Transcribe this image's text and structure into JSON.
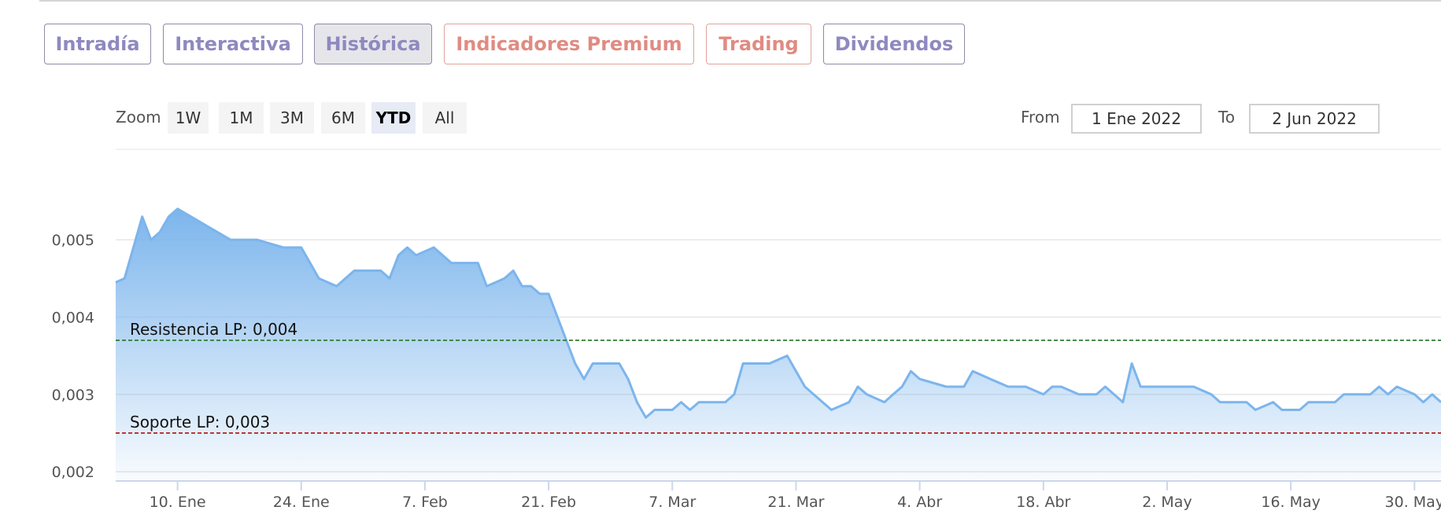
{
  "tabs": [
    {
      "label": "Intradía",
      "active": false,
      "style": "normal"
    },
    {
      "label": "Interactiva",
      "active": false,
      "style": "normal"
    },
    {
      "label": "Histórica",
      "active": true,
      "style": "normal"
    },
    {
      "label": "Indicadores Premium",
      "active": false,
      "style": "premium"
    },
    {
      "label": "Trading",
      "active": false,
      "style": "premium"
    },
    {
      "label": "Dividendos",
      "active": false,
      "style": "normal"
    }
  ],
  "zoom": {
    "label": "Zoom",
    "buttons": [
      "1W",
      "1M",
      "3M",
      "6M",
      "YTD",
      "All"
    ],
    "selected": "YTD"
  },
  "range": {
    "from_label": "From",
    "from_value": "1 Ene 2022",
    "to_label": "To",
    "to_value": "2 Jun 2022"
  },
  "colors": {
    "line": "#7cb5ec",
    "resistance": "#2e7d32",
    "support": "#b71c1c",
    "tab_text": "#8e89c0",
    "premium_text": "#e08b82"
  },
  "chart_data": {
    "type": "area",
    "title": "",
    "xlabel": "",
    "ylabel": "",
    "ylim": [
      0.00188,
      0.00617
    ],
    "yticks": [
      {
        "value": 0.002,
        "label": "0,002"
      },
      {
        "value": 0.003,
        "label": "0,003"
      },
      {
        "value": 0.004,
        "label": "0,004"
      },
      {
        "value": 0.005,
        "label": "0,005"
      }
    ],
    "xlim": [
      "2022-01-03",
      "2022-06-02"
    ],
    "xticks": [
      {
        "date": "2022-01-10",
        "label": "10. Ene"
      },
      {
        "date": "2022-01-24",
        "label": "24. Ene"
      },
      {
        "date": "2022-02-07",
        "label": "7. Feb"
      },
      {
        "date": "2022-02-21",
        "label": "21. Feb"
      },
      {
        "date": "2022-03-07",
        "label": "7. Mar"
      },
      {
        "date": "2022-03-21",
        "label": "21. Mar"
      },
      {
        "date": "2022-04-04",
        "label": "4. Abr"
      },
      {
        "date": "2022-04-18",
        "label": "18. Abr"
      },
      {
        "date": "2022-05-02",
        "label": "2. May"
      },
      {
        "date": "2022-05-16",
        "label": "16. May"
      },
      {
        "date": "2022-05-30",
        "label": "30. May"
      }
    ],
    "lines": [
      {
        "label": "Resistencia LP: 0,004",
        "value": 0.0037,
        "color": "#2e7d32"
      },
      {
        "label": "Soporte LP: 0,003",
        "value": 0.0025,
        "color": "#b71c1c"
      }
    ],
    "series": [
      {
        "x": [
          "2022-01-03",
          "2022-01-04",
          "2022-01-05",
          "2022-01-06",
          "2022-01-07",
          "2022-01-08",
          "2022-01-09",
          "2022-01-10",
          "2022-01-13",
          "2022-01-16",
          "2022-01-19",
          "2022-01-22",
          "2022-01-23",
          "2022-01-24",
          "2022-01-26",
          "2022-01-28",
          "2022-01-30",
          "2022-01-31",
          "2022-02-02",
          "2022-02-03",
          "2022-02-04",
          "2022-02-05",
          "2022-02-06",
          "2022-02-08",
          "2022-02-09",
          "2022-02-10",
          "2022-02-13",
          "2022-02-14",
          "2022-02-16",
          "2022-02-17",
          "2022-02-18",
          "2022-02-19",
          "2022-02-20",
          "2022-02-21",
          "2022-02-24",
          "2022-02-25",
          "2022-02-26",
          "2022-02-27",
          "2022-02-28",
          "2022-03-01",
          "2022-03-02",
          "2022-03-03",
          "2022-03-04",
          "2022-03-05",
          "2022-03-06",
          "2022-03-07",
          "2022-03-08",
          "2022-03-09",
          "2022-03-10",
          "2022-03-11",
          "2022-03-12",
          "2022-03-13",
          "2022-03-14",
          "2022-03-15",
          "2022-03-16",
          "2022-03-18",
          "2022-03-20",
          "2022-03-22",
          "2022-03-25",
          "2022-03-27",
          "2022-03-28",
          "2022-03-29",
          "2022-03-31",
          "2022-04-01",
          "2022-04-02",
          "2022-04-03",
          "2022-04-04",
          "2022-04-07",
          "2022-04-09",
          "2022-04-10",
          "2022-04-12",
          "2022-04-14",
          "2022-04-15",
          "2022-04-16",
          "2022-04-18",
          "2022-04-19",
          "2022-04-20",
          "2022-04-22",
          "2022-04-23",
          "2022-04-24",
          "2022-04-25",
          "2022-04-27",
          "2022-04-28",
          "2022-04-29",
          "2022-05-01",
          "2022-05-03",
          "2022-05-04",
          "2022-05-05",
          "2022-05-07",
          "2022-05-08",
          "2022-05-09",
          "2022-05-11",
          "2022-05-12",
          "2022-05-14",
          "2022-05-15",
          "2022-05-16",
          "2022-05-17",
          "2022-05-18",
          "2022-05-20",
          "2022-05-21",
          "2022-05-22",
          "2022-05-24",
          "2022-05-25",
          "2022-05-26",
          "2022-05-27",
          "2022-05-28",
          "2022-05-30",
          "2022-05-31",
          "2022-06-01",
          "2022-06-02"
        ],
        "values": [
          0.00445,
          0.0045,
          0.0049,
          0.0053,
          0.005,
          0.0051,
          0.0053,
          0.0054,
          0.0052,
          0.005,
          0.005,
          0.0049,
          0.0049,
          0.0049,
          0.0045,
          0.0044,
          0.0046,
          0.0046,
          0.0046,
          0.0045,
          0.0048,
          0.0049,
          0.0048,
          0.0049,
          0.0048,
          0.0047,
          0.0047,
          0.0044,
          0.0045,
          0.0046,
          0.0044,
          0.0044,
          0.0043,
          0.0043,
          0.0034,
          0.0032,
          0.0034,
          0.0034,
          0.0034,
          0.0034,
          0.0032,
          0.0029,
          0.0027,
          0.0028,
          0.0028,
          0.0028,
          0.0029,
          0.0028,
          0.0029,
          0.0029,
          0.0029,
          0.0029,
          0.003,
          0.0034,
          0.0034,
          0.0034,
          0.0035,
          0.0031,
          0.0028,
          0.0029,
          0.0031,
          0.003,
          0.0029,
          0.003,
          0.0031,
          0.0033,
          0.0032,
          0.0031,
          0.0031,
          0.0033,
          0.0032,
          0.0031,
          0.0031,
          0.0031,
          0.003,
          0.0031,
          0.0031,
          0.003,
          0.003,
          0.003,
          0.0031,
          0.0029,
          0.0034,
          0.0031,
          0.0031,
          0.0031,
          0.0031,
          0.0031,
          0.003,
          0.0029,
          0.0029,
          0.0029,
          0.0028,
          0.0029,
          0.0028,
          0.0028,
          0.0028,
          0.0029,
          0.0029,
          0.0029,
          0.003,
          0.003,
          0.003,
          0.0031,
          0.003,
          0.0031,
          0.003,
          0.0029,
          0.003,
          0.0029
        ]
      }
    ]
  }
}
